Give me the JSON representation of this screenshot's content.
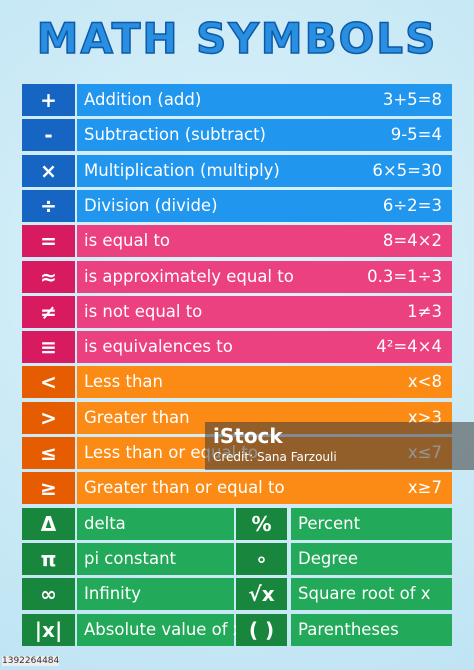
{
  "title": "MATH SYMBOLS",
  "sections": [
    {
      "rows": [
        {
          "symbol": "+",
          "name": "Addition (add)",
          "example": "3+5=8"
        },
        {
          "symbol": "-",
          "name": "Subtraction (subtract)",
          "example": "9-5=4"
        },
        {
          "symbol": "×",
          "name": "Multiplication (multiply)",
          "example": "6×5=30"
        },
        {
          "symbol": "÷",
          "name": "Division (divide)",
          "example": "6÷2=3"
        }
      ]
    },
    {
      "rows": [
        {
          "symbol": "=",
          "name": "is equal to",
          "example": "8=4×2"
        },
        {
          "symbol": "≈",
          "name": "is approximately equal to",
          "example": "0.3=1÷3"
        },
        {
          "symbol": "≠",
          "name": "is not equal to",
          "example": "1≠3"
        },
        {
          "symbol": "≡",
          "name": "is equivalences  to",
          "example": "4²=4×4"
        }
      ]
    },
    {
      "rows": [
        {
          "symbol": "<",
          "name": "Less than",
          "example": "x<8"
        },
        {
          "symbol": ">",
          "name": "Greater than",
          "example": "x>3"
        },
        {
          "symbol": "≤",
          "name": "Less than or equal to",
          "example": "x≤7"
        },
        {
          "symbol": "≥",
          "name": "Greater than or equal to",
          "example": "x≥7"
        }
      ]
    }
  ],
  "grid_rows": [
    [
      {
        "symbol": "Δ",
        "name": "delta"
      },
      {
        "symbol": "%",
        "name": "Percent"
      }
    ],
    [
      {
        "symbol": "π",
        "name": "pi constant"
      },
      {
        "symbol": "∘",
        "name": "Degree"
      }
    ],
    [
      {
        "symbol": "∞",
        "name": "Infinity"
      },
      {
        "symbol": "√x",
        "name": "Square root of x"
      }
    ],
    [
      {
        "symbol": "|x|",
        "name": "Absolute value of x"
      },
      {
        "symbol": "( )",
        "name": "Parentheses"
      }
    ]
  ],
  "watermark": {
    "brand": "iStock",
    "credit": "Credit: Sana Farzouli"
  },
  "image_id": "1392264484"
}
